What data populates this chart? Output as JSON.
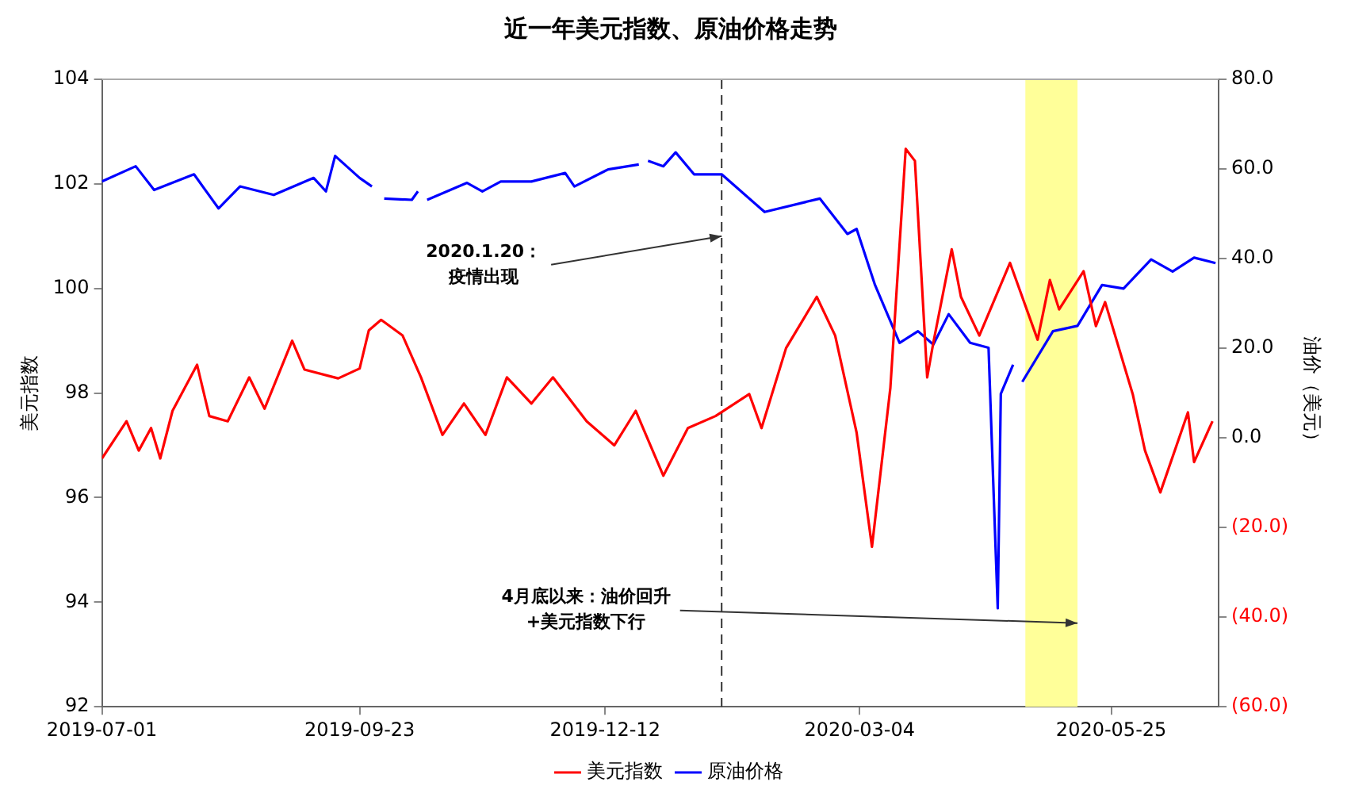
{
  "chart_data": {
    "type": "line",
    "title": "近一年美元指数、原油价格走势",
    "ylabel": "美元指数",
    "y2label": "油价（美元）",
    "xlim": [
      "2019-07-01",
      "2020-06-29"
    ],
    "xticks": [
      "2019-07-01",
      "2019-09-23",
      "2019-12-12",
      "2020-03-04",
      "2020-05-25"
    ],
    "ylim": [
      92,
      104
    ],
    "yticks": [
      92,
      94,
      96,
      98,
      100,
      102,
      104
    ],
    "y2lim": [
      -60,
      80
    ],
    "y2ticks": [
      {
        "value": -60,
        "label": "(60.0)"
      },
      {
        "value": -40,
        "label": "(40.0)"
      },
      {
        "value": -20,
        "label": "(20.0)"
      },
      {
        "value": 0,
        "label": "0.0"
      },
      {
        "value": 20,
        "label": "20.0"
      },
      {
        "value": 40,
        "label": "40.0"
      },
      {
        "value": 60,
        "label": "60.0"
      },
      {
        "value": 80,
        "label": "80.0"
      }
    ],
    "grid": false,
    "legend": "bottom",
    "line_style": "solid",
    "marker": "none",
    "series": [
      {
        "name": "美元指数",
        "color": "#ff0000",
        "x": [
          "2019-07-01",
          "2019-07-09",
          "2019-07-13",
          "2019-07-17",
          "2019-07-20",
          "2019-07-24",
          "2019-08-01",
          "2019-08-05",
          "2019-08-11",
          "2019-08-18",
          "2019-08-23",
          "2019-09-01",
          "2019-09-05",
          "2019-09-16",
          "2019-09-23",
          "2019-09-26",
          "2019-09-30",
          "2019-10-07",
          "2019-10-13",
          "2019-10-20",
          "2019-10-27",
          "2019-11-03",
          "2019-11-10",
          "2019-11-18",
          "2019-11-25",
          "2019-12-06",
          "2019-12-15",
          "2019-12-22",
          "2019-12-31",
          "2020-01-08",
          "2020-01-17",
          "2020-01-28",
          "2020-02-01",
          "2020-02-09",
          "2020-02-19",
          "2020-02-25",
          "2020-03-03",
          "2020-03-08",
          "2020-03-14",
          "2020-03-19",
          "2020-03-22",
          "2020-03-26",
          "2020-03-28",
          "2020-04-03",
          "2020-04-06",
          "2020-04-12",
          "2020-04-22",
          "2020-05-01",
          "2020-05-05",
          "2020-05-08",
          "2020-05-16",
          "2020-05-20",
          "2020-05-23",
          "2020-06-01",
          "2020-06-05",
          "2020-06-10",
          "2020-06-19",
          "2020-06-21",
          "2020-06-27"
        ],
        "values": [
          96.75,
          97.46,
          96.9,
          97.33,
          96.75,
          97.66,
          98.54,
          97.56,
          97.46,
          98.3,
          97.7,
          99.0,
          98.45,
          98.28,
          98.47,
          99.2,
          99.4,
          99.1,
          98.3,
          97.2,
          97.8,
          97.2,
          98.3,
          97.8,
          98.3,
          97.46,
          97.0,
          97.66,
          96.42,
          97.33,
          97.56,
          97.98,
          97.33,
          98.86,
          99.84,
          99.1,
          97.24,
          95.06,
          98.1,
          102.67,
          102.44,
          98.3,
          98.96,
          100.75,
          99.84,
          99.1,
          100.49,
          99.02,
          100.16,
          99.6,
          100.33,
          99.28,
          99.74,
          97.98,
          96.9,
          96.1,
          97.63,
          96.68,
          97.46
        ]
      },
      {
        "name": "原油价格",
        "color": "#0000ff",
        "axis": "y2",
        "x": [
          "2019-07-01",
          "2019-07-12",
          "2019-07-18",
          "2019-07-31",
          "2019-08-08",
          "2019-08-15",
          "2019-08-26",
          "2019-09-08",
          "2019-09-12",
          "2019-09-15",
          "2019-09-23",
          "2019-09-27",
          "2019-09-29",
          "2019-10-01",
          "2019-10-10",
          "2019-10-12",
          "2019-10-14",
          "2019-10-15",
          "2019-10-28",
          "2019-11-02",
          "2019-11-08",
          "2019-11-18",
          "2019-11-29",
          "2019-12-02",
          "2019-12-13",
          "2019-12-23",
          "2019-12-24",
          "2019-12-26",
          "2019-12-31",
          "2020-01-04",
          "2020-01-10",
          "2020-01-17",
          "2020-01-19",
          "2020-02-02",
          "2020-02-20",
          "2020-02-29",
          "2020-03-03",
          "2020-03-09",
          "2020-03-17",
          "2020-03-23",
          "2020-03-28",
          "2020-04-02",
          "2020-04-09",
          "2020-04-15",
          "2020-04-17",
          "2020-04-18",
          "2020-04-19",
          "2020-04-23",
          "2020-04-24",
          "2020-04-26",
          "2020-05-06",
          "2020-05-14",
          "2020-05-22",
          "2020-05-29",
          "2020-06-07",
          "2020-06-14",
          "2020-06-21",
          "2020-06-28"
        ],
        "values": [
          57.2,
          60.6,
          55.3,
          58.8,
          51.2,
          56.1,
          54.2,
          58.0,
          55.0,
          62.9,
          58.0,
          56.1,
          null,
          53.4,
          53.1,
          55.0,
          null,
          53.1,
          56.9,
          55.0,
          57.2,
          57.2,
          59.1,
          56.1,
          59.9,
          61.0,
          null,
          61.8,
          60.6,
          63.7,
          58.8,
          58.8,
          58.8,
          50.4,
          53.4,
          45.5,
          46.6,
          34.1,
          21.2,
          23.8,
          20.8,
          27.6,
          21.2,
          20.1,
          -19.0,
          -38.0,
          9.8,
          16.3,
          null,
          12.5,
          23.8,
          25.0,
          34.1,
          33.3,
          39.8,
          37.1,
          40.2,
          39.0
        ]
      }
    ],
    "ref_lines": [
      {
        "axis": "x",
        "value": "2020-01-19",
        "color": "#333333",
        "line_style": "dashed"
      }
    ],
    "bands": [
      {
        "axis": "x",
        "from": "2020-04-27",
        "to": "2020-05-14",
        "color": "#ffff99"
      }
    ],
    "annotations": [
      {
        "text": "2020.1.20：疫情出现",
        "x": "2020-01-19",
        "y": 101
      },
      {
        "text": "4月底以来：油价回升+美元指数下行",
        "x": "2020-05-14",
        "y": 93.6
      }
    ]
  }
}
